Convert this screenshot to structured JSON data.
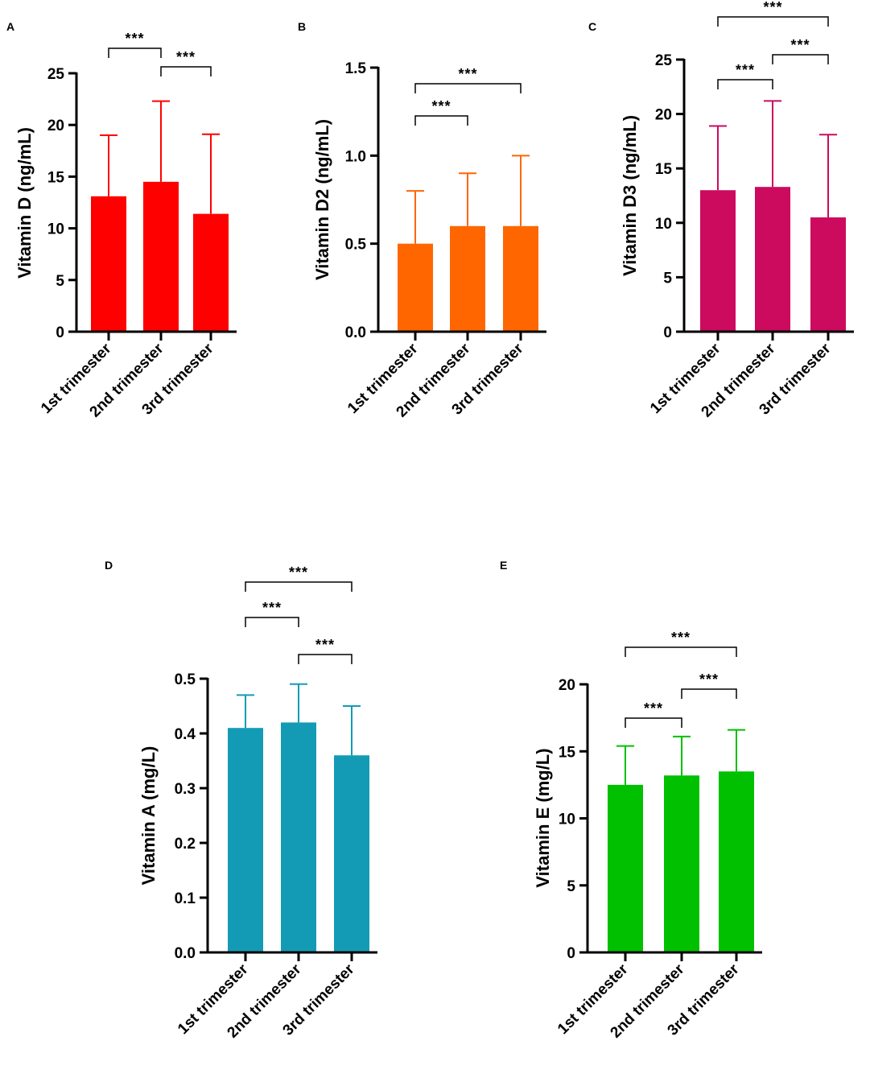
{
  "chart_data": [
    {
      "panel": "A",
      "type": "bar",
      "categories": [
        "1st trimester",
        "2nd trimester",
        "3rd trimester"
      ],
      "values": [
        13.1,
        14.5,
        11.4
      ],
      "errors": [
        5.9,
        7.8,
        7.7
      ],
      "ylabel": "Vitamin D (ng/mL)",
      "ylim": [
        0,
        25
      ],
      "yticks": [
        0,
        5,
        10,
        15,
        20,
        25
      ],
      "tick_labels": [
        "0",
        "5",
        "10",
        "15",
        "20",
        "25"
      ],
      "color": "#ff0000",
      "significance": [
        {
          "from": 0,
          "to": 1,
          "label": "***"
        },
        {
          "from": 1,
          "to": 2,
          "label": "***"
        }
      ]
    },
    {
      "panel": "B",
      "type": "bar",
      "categories": [
        "1st trimester",
        "2nd trimester",
        "3rd trimester"
      ],
      "values": [
        0.5,
        0.6,
        0.6
      ],
      "errors": [
        0.3,
        0.3,
        0.4
      ],
      "ylabel": "Vitamin D2 (ng/mL)",
      "ylim": [
        0,
        1.5
      ],
      "yticks": [
        0,
        0.5,
        1.0,
        1.5
      ],
      "tick_labels": [
        "0.0",
        "0.5",
        "1.0",
        "1.5"
      ],
      "color": "#ff6600",
      "significance": [
        {
          "from": 0,
          "to": 1,
          "label": "***"
        },
        {
          "from": 0,
          "to": 2,
          "label": "***"
        }
      ]
    },
    {
      "panel": "C",
      "type": "bar",
      "categories": [
        "1st trimester",
        "2nd trimester",
        "3rd trimester"
      ],
      "values": [
        13.0,
        13.3,
        10.5
      ],
      "errors": [
        5.9,
        7.9,
        7.6
      ],
      "ylabel": "Vitamin D3  (ng/mL)",
      "ylim": [
        0,
        25
      ],
      "yticks": [
        0,
        5,
        10,
        15,
        20,
        25
      ],
      "tick_labels": [
        "0",
        "5",
        "10",
        "15",
        "20",
        "25"
      ],
      "color": "#cc0a5e",
      "significance": [
        {
          "from": 0,
          "to": 1,
          "label": "***"
        },
        {
          "from": 1,
          "to": 2,
          "label": "***"
        },
        {
          "from": 0,
          "to": 2,
          "label": "***"
        }
      ]
    },
    {
      "panel": "D",
      "type": "bar",
      "categories": [
        "1st trimester",
        "2nd trimester",
        "3rd trimester"
      ],
      "values": [
        0.41,
        0.42,
        0.36
      ],
      "errors": [
        0.06,
        0.07,
        0.09
      ],
      "ylabel": "Vitamin A (mg/L)",
      "ylim": [
        0,
        0.5
      ],
      "yticks": [
        0,
        0.1,
        0.2,
        0.3,
        0.4,
        0.5
      ],
      "tick_labels": [
        "0.0",
        "0.1",
        "0.2",
        "0.3",
        "0.4",
        "0.5"
      ],
      "color": "#139bb5",
      "significance": [
        {
          "from": 0,
          "to": 1,
          "label": "***"
        },
        {
          "from": 1,
          "to": 2,
          "label": "***"
        },
        {
          "from": 0,
          "to": 2,
          "label": "***"
        }
      ]
    },
    {
      "panel": "E",
      "type": "bar",
      "categories": [
        "1st trimester",
        "2nd trimester",
        "3rd trimester"
      ],
      "values": [
        12.5,
        13.2,
        13.5
      ],
      "errors": [
        2.9,
        2.9,
        3.1
      ],
      "ylabel": "Vitamin E (mg/L)",
      "ylim": [
        0,
        20
      ],
      "yticks": [
        0,
        5,
        10,
        15,
        20
      ],
      "tick_labels": [
        "0",
        "5",
        "10",
        "15",
        "20"
      ],
      "color": "#00c000",
      "significance": [
        {
          "from": 0,
          "to": 1,
          "label": "***"
        },
        {
          "from": 1,
          "to": 2,
          "label": "***"
        },
        {
          "from": 0,
          "to": 2,
          "label": "***"
        }
      ]
    }
  ]
}
